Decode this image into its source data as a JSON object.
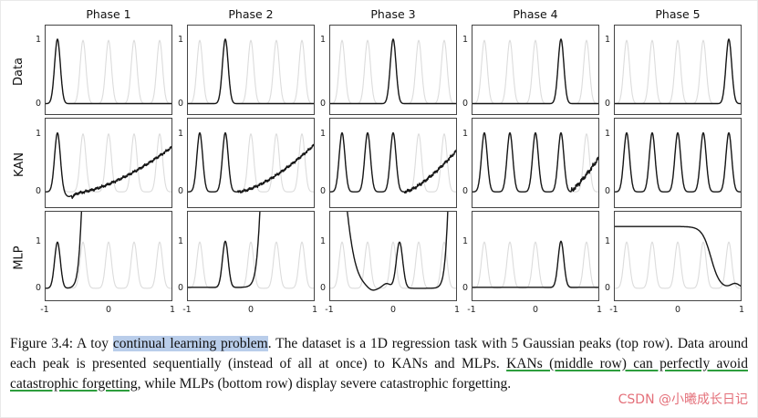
{
  "chart_data": {
    "type": "line",
    "layout": "3x5-grid",
    "columns": [
      "Phase 1",
      "Phase 2",
      "Phase 3",
      "Phase 4",
      "Phase 5"
    ],
    "x_range": [
      -1,
      1
    ],
    "x_ticks": [
      -1,
      0,
      1
    ],
    "y_ticks": [
      0,
      1
    ],
    "gaussian_centers": [
      -0.8,
      -0.4,
      0.0,
      0.4,
      0.8
    ],
    "gaussian_sigma": 0.045,
    "background_color": "#dcdcdc",
    "line_color": "#161616",
    "background_description": "all 5 ground-truth Gaussian peaks drawn in light gray in every panel",
    "rows": [
      {
        "label": "Data",
        "ylim": [
          -0.18,
          1.25
        ],
        "cells": [
          {
            "components": [
              {
                "t": "g",
                "c": -0.8
              }
            ]
          },
          {
            "components": [
              {
                "t": "g",
                "c": -0.4
              }
            ]
          },
          {
            "components": [
              {
                "t": "g",
                "c": 0.0
              }
            ]
          },
          {
            "components": [
              {
                "t": "g",
                "c": 0.4
              }
            ]
          },
          {
            "components": [
              {
                "t": "g",
                "c": 0.8
              }
            ]
          }
        ]
      },
      {
        "label": "KAN",
        "ylim": [
          -0.28,
          1.28
        ],
        "cells": [
          {
            "components": [
              {
                "t": "g",
                "c": -0.8
              },
              {
                "t": "g",
                "c": -0.62,
                "a": -0.08,
                "s": 0.06
              },
              {
                "t": "ramp",
                "x0": -0.58,
                "y0": -0.03,
                "y1": 0.78,
                "p": 1.6,
                "noise": 0.03
              }
            ]
          },
          {
            "components": [
              {
                "t": "g",
                "c": -0.8
              },
              {
                "t": "g",
                "c": -0.4
              },
              {
                "t": "ramp",
                "x0": -0.2,
                "y0": 0,
                "y1": 0.82,
                "p": 1.5,
                "noise": 0.03
              }
            ]
          },
          {
            "components": [
              {
                "t": "g",
                "c": -0.8
              },
              {
                "t": "g",
                "c": -0.4
              },
              {
                "t": "g",
                "c": 0.0
              },
              {
                "t": "ramp",
                "x0": 0.18,
                "y0": 0,
                "y1": 0.72,
                "p": 1.4,
                "noise": 0.035
              }
            ]
          },
          {
            "components": [
              {
                "t": "g",
                "c": -0.8
              },
              {
                "t": "g",
                "c": -0.4
              },
              {
                "t": "g",
                "c": 0.0
              },
              {
                "t": "g",
                "c": 0.4
              },
              {
                "t": "ramp",
                "x0": 0.56,
                "y0": 0.02,
                "y1": 0.6,
                "p": 1.2,
                "noise": 0.05
              }
            ]
          },
          {
            "components": [
              {
                "t": "g",
                "c": -0.8
              },
              {
                "t": "g",
                "c": -0.4
              },
              {
                "t": "g",
                "c": 0.0
              },
              {
                "t": "g",
                "c": 0.4
              },
              {
                "t": "g",
                "c": 0.8
              }
            ]
          }
        ]
      },
      {
        "label": "MLP",
        "ylim": [
          -0.28,
          1.68
        ],
        "cells": [
          {
            "components": [
              {
                "t": "g",
                "c": -0.8,
                "a": 1.0
              },
              {
                "t": "sig",
                "c": -0.4,
                "w": 0.035,
                "a": 5
              }
            ]
          },
          {
            "components": [
              {
                "t": "const",
                "a": 0.02
              },
              {
                "t": "g",
                "c": -0.4,
                "a": 1.0
              },
              {
                "t": "sig",
                "c": 0.17,
                "w": 0.04,
                "a": 5
              }
            ]
          },
          {
            "components": [
              {
                "t": "fall",
                "c": -0.78,
                "w": 0.09,
                "a": 5
              },
              {
                "t": "g",
                "c": -0.33,
                "s": 0.07,
                "a": -0.07
              },
              {
                "t": "g",
                "c": -0.1,
                "s": 0.06,
                "a": 0.1
              },
              {
                "t": "g",
                "c": 0.1,
                "s": 0.05,
                "a": 1.0
              },
              {
                "t": "sig",
                "c": 0.88,
                "w": 0.035,
                "a": 5
              }
            ]
          },
          {
            "components": [
              {
                "t": "const",
                "a": 0.02
              },
              {
                "t": "g",
                "c": 0.4,
                "a": 1.0
              }
            ]
          },
          {
            "components": [
              {
                "t": "fall",
                "c": 0.52,
                "w": 0.07,
                "a": 1.34
              },
              {
                "t": "g",
                "c": 0.9,
                "s": 0.07,
                "a": 0.1
              }
            ]
          }
        ]
      }
    ]
  },
  "caption": {
    "segments": [
      {
        "text": "Figure 3.4: A toy ",
        "style": "plain"
      },
      {
        "text": "continual learning problem",
        "style": "highlight"
      },
      {
        "text": ". The dataset is a 1D regression task with 5 Gaussian peaks (top row). Data around each peak is presented sequentially (instead of all at once) to KANs and MLPs. ",
        "style": "plain"
      },
      {
        "text": "KANs (middle row) can perfectly avoid catastrophic forgetting",
        "style": "green-underline"
      },
      {
        "text": ", while MLPs (bottom row) display severe catastrophic forgetting.",
        "style": "plain"
      }
    ],
    "highlight_color": "#b9cdea",
    "underline_color": "#2e9e3e"
  },
  "watermark": {
    "text": "CSDN @小曦成长日记",
    "color": "#e4707a"
  }
}
